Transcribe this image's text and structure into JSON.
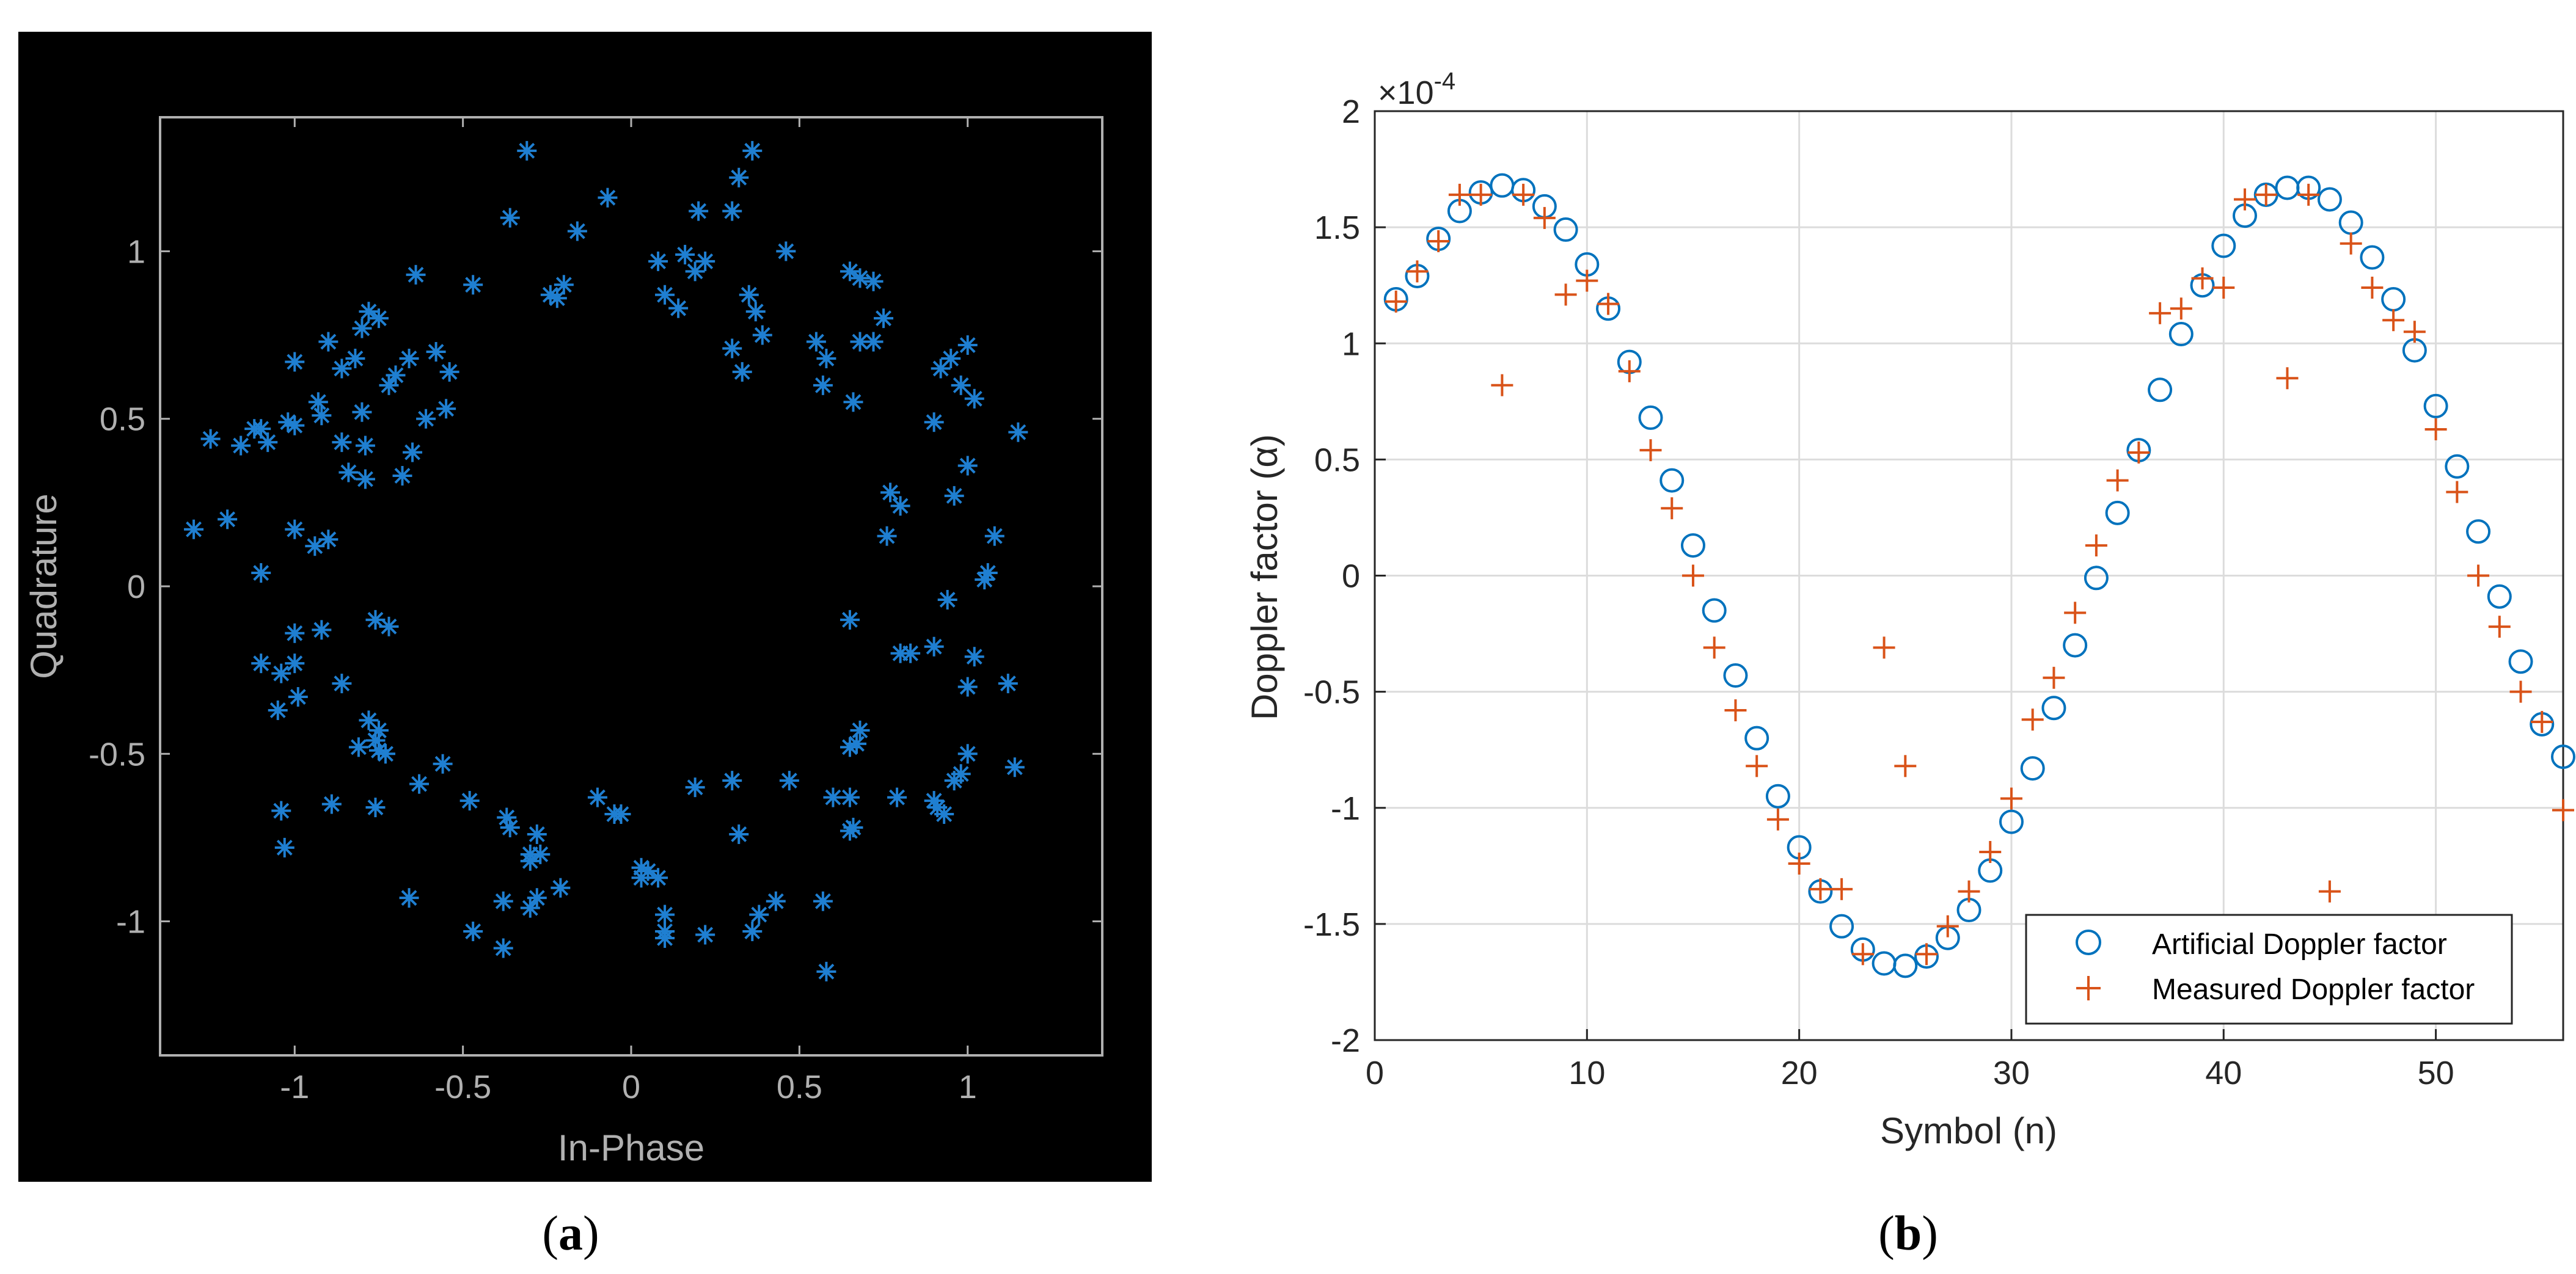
{
  "figure": {
    "caption_a": {
      "open": "(",
      "letter": "a",
      "close": ")"
    },
    "caption_b": {
      "open": "(",
      "letter": "b",
      "close": ")"
    }
  },
  "chart_data": [
    {
      "panel": "a",
      "type": "scatter",
      "title": "",
      "xlabel": "In-Phase",
      "ylabel": "Quadrature",
      "xlim": [
        -1.4,
        1.4
      ],
      "ylim": [
        -1.4,
        1.4
      ],
      "xticks": [
        -1,
        -0.5,
        0,
        0.5,
        1
      ],
      "xtick_labels": [
        "-1",
        "-0.5",
        "0",
        "0.5",
        "1"
      ],
      "yticks": [
        -1,
        -0.5,
        0,
        0.5,
        1
      ],
      "ytick_labels": [
        "-1",
        "-0.5",
        "0",
        "0.5",
        "1"
      ],
      "background": "#000000",
      "axis_color": "#b0b0b0",
      "marker": "asterisk",
      "marker_color": "#1f7fd1",
      "grid": false,
      "points": [
        [
          -0.31,
          1.3
        ],
        [
          -0.36,
          1.1
        ],
        [
          -0.16,
          1.06
        ],
        [
          -0.07,
          1.16
        ],
        [
          -0.2,
          0.9
        ],
        [
          -0.24,
          0.87
        ],
        [
          -0.22,
          0.86
        ],
        [
          0.36,
          1.3
        ],
        [
          0.32,
          1.22
        ],
        [
          0.3,
          1.12
        ],
        [
          0.2,
          1.12
        ],
        [
          0.16,
          0.99
        ],
        [
          0.22,
          0.97
        ],
        [
          0.19,
          0.94
        ],
        [
          0.08,
          0.97
        ],
        [
          0.1,
          0.87
        ],
        [
          0.14,
          0.83
        ],
        [
          0.46,
          1.0
        ],
        [
          0.35,
          0.87
        ],
        [
          0.37,
          0.82
        ],
        [
          0.39,
          0.75
        ],
        [
          0.3,
          0.71
        ],
        [
          0.33,
          0.64
        ],
        [
          0.65,
          0.94
        ],
        [
          0.68,
          0.92
        ],
        [
          0.72,
          0.91
        ],
        [
          0.55,
          0.73
        ],
        [
          0.58,
          0.68
        ],
        [
          0.68,
          0.73
        ],
        [
          0.72,
          0.73
        ],
        [
          0.75,
          0.8
        ],
        [
          0.57,
          0.6
        ],
        [
          0.66,
          0.55
        ],
        [
          -0.64,
          0.93
        ],
        [
          -0.47,
          0.9
        ],
        [
          -0.66,
          0.68
        ],
        [
          -0.72,
          0.6
        ],
        [
          -0.7,
          0.63
        ],
        [
          -0.75,
          0.8
        ],
        [
          -0.8,
          0.77
        ],
        [
          -0.86,
          0.65
        ],
        [
          -0.82,
          0.68
        ],
        [
          -0.58,
          0.7
        ],
        [
          -0.54,
          0.64
        ],
        [
          -0.61,
          0.5
        ],
        [
          -0.55,
          0.53
        ],
        [
          -1.0,
          0.67
        ],
        [
          -0.9,
          0.73
        ],
        [
          -0.78,
          0.82
        ],
        [
          -0.93,
          0.55
        ],
        [
          -0.92,
          0.51
        ],
        [
          -0.86,
          0.43
        ],
        [
          -0.79,
          0.42
        ],
        [
          -0.84,
          0.34
        ],
        [
          -0.79,
          0.32
        ],
        [
          -0.65,
          0.4
        ],
        [
          -0.68,
          0.33
        ],
        [
          -0.8,
          0.52
        ],
        [
          -1.25,
          0.44
        ],
        [
          -1.16,
          0.42
        ],
        [
          -1.1,
          0.47
        ],
        [
          -1.12,
          0.47
        ],
        [
          -1.08,
          0.43
        ],
        [
          -1.02,
          0.49
        ],
        [
          -1.0,
          0.48
        ],
        [
          -1.3,
          0.17
        ],
        [
          -1.2,
          0.2
        ],
        [
          -1.1,
          0.04
        ],
        [
          -1.0,
          0.17
        ],
        [
          -0.94,
          0.12
        ],
        [
          -0.9,
          0.14
        ],
        [
          0.92,
          0.65
        ],
        [
          0.95,
          0.68
        ],
        [
          1.0,
          0.72
        ],
        [
          0.98,
          0.6
        ],
        [
          1.02,
          0.56
        ],
        [
          0.9,
          0.49
        ],
        [
          1.0,
          0.36
        ],
        [
          0.96,
          0.27
        ],
        [
          1.15,
          0.46
        ],
        [
          0.77,
          0.28
        ],
        [
          0.8,
          0.24
        ],
        [
          0.76,
          0.15
        ],
        [
          1.08,
          0.15
        ],
        [
          1.06,
          0.04
        ],
        [
          1.05,
          0.02
        ],
        [
          0.94,
          -0.04
        ],
        [
          1.02,
          -0.21
        ],
        [
          1.12,
          -0.29
        ],
        [
          1.0,
          -0.3
        ],
        [
          0.9,
          -0.18
        ],
        [
          0.83,
          -0.2
        ],
        [
          0.8,
          -0.2
        ],
        [
          0.65,
          -0.1
        ],
        [
          -1.0,
          -0.14
        ],
        [
          -0.92,
          -0.13
        ],
        [
          -1.1,
          -0.23
        ],
        [
          -1.04,
          -0.26
        ],
        [
          -1.0,
          -0.23
        ],
        [
          -1.05,
          -0.37
        ],
        [
          -0.99,
          -0.33
        ],
        [
          -0.86,
          -0.29
        ],
        [
          -0.76,
          -0.1
        ],
        [
          -0.72,
          -0.12
        ],
        [
          -0.78,
          -0.4
        ],
        [
          -0.75,
          -0.43
        ],
        [
          -0.76,
          -0.46
        ],
        [
          -0.81,
          -0.48
        ],
        [
          -0.75,
          -0.49
        ],
        [
          -0.73,
          -0.5
        ],
        [
          -0.56,
          -0.53
        ],
        [
          -0.63,
          -0.59
        ],
        [
          -0.76,
          -0.66
        ],
        [
          -0.89,
          -0.65
        ],
        [
          -1.04,
          -0.67
        ],
        [
          -1.03,
          -0.78
        ],
        [
          -0.66,
          -0.93
        ],
        [
          0.68,
          -0.43
        ],
        [
          0.67,
          -0.47
        ],
        [
          0.65,
          -0.48
        ],
        [
          0.47,
          -0.58
        ],
        [
          0.6,
          -0.63
        ],
        [
          0.65,
          -0.63
        ],
        [
          0.66,
          -0.72
        ],
        [
          0.65,
          -0.73
        ],
        [
          0.79,
          -0.63
        ],
        [
          1.0,
          -0.5
        ],
        [
          0.98,
          -0.56
        ],
        [
          0.96,
          -0.58
        ],
        [
          0.9,
          -0.64
        ],
        [
          0.93,
          -0.68
        ],
        [
          0.91,
          -0.66
        ],
        [
          1.14,
          -0.54
        ],
        [
          -0.48,
          -0.64
        ],
        [
          -0.37,
          -0.69
        ],
        [
          -0.36,
          -0.72
        ],
        [
          -0.28,
          -0.74
        ],
        [
          -0.3,
          -0.8
        ],
        [
          -0.3,
          -0.82
        ],
        [
          -0.27,
          -0.8
        ],
        [
          -0.21,
          -0.9
        ],
        [
          -0.38,
          -0.94
        ],
        [
          -0.3,
          -0.96
        ],
        [
          -0.28,
          -0.93
        ],
        [
          -0.47,
          -1.03
        ],
        [
          -0.38,
          -1.08
        ],
        [
          -0.1,
          -0.63
        ],
        [
          -0.05,
          -0.68
        ],
        [
          -0.03,
          -0.68
        ],
        [
          0.03,
          -0.84
        ],
        [
          0.05,
          -0.85
        ],
        [
          0.03,
          -0.87
        ],
        [
          0.08,
          -0.87
        ],
        [
          0.1,
          -0.98
        ],
        [
          0.1,
          -1.03
        ],
        [
          0.1,
          -1.05
        ],
        [
          0.22,
          -1.04
        ],
        [
          0.3,
          -0.58
        ],
        [
          0.19,
          -0.6
        ],
        [
          0.32,
          -0.74
        ],
        [
          0.43,
          -0.94
        ],
        [
          0.38,
          -0.98
        ],
        [
          0.36,
          -1.03
        ],
        [
          0.57,
          -0.94
        ],
        [
          0.58,
          -1.15
        ]
      ]
    },
    {
      "panel": "b",
      "type": "scatter",
      "title": "",
      "xlabel": "Symbol (n)",
      "ylabel": "Doppler factor (α)",
      "exponent_label": "×10",
      "exponent_power": "-4",
      "xlim": [
        0,
        56
      ],
      "ylim": [
        -2,
        2
      ],
      "xticks": [
        0,
        10,
        20,
        30,
        40,
        50
      ],
      "xtick_labels": [
        "0",
        "10",
        "20",
        "30",
        "40",
        "50"
      ],
      "yticks": [
        -2,
        -1.5,
        -1,
        -0.5,
        0,
        0.5,
        1,
        1.5,
        2
      ],
      "ytick_labels": [
        "-2",
        "-1.5",
        "-1",
        "-0.5",
        "0",
        "0.5",
        "1",
        "1.5",
        "2"
      ],
      "grid": true,
      "legend_position": "bottom-right",
      "series": [
        {
          "name": "Artificial Doppler factor",
          "marker": "circle",
          "color": "#0072bd",
          "x": [
            1,
            2,
            3,
            4,
            5,
            6,
            7,
            8,
            9,
            10,
            11,
            12,
            13,
            14,
            15,
            16,
            17,
            18,
            19,
            20,
            21,
            22,
            23,
            24,
            25,
            26,
            27,
            28,
            29,
            30,
            31,
            32,
            33,
            34,
            35,
            36,
            37,
            38,
            39,
            40,
            41,
            42,
            43,
            44,
            45,
            46,
            47,
            48,
            49,
            50,
            51,
            52,
            53,
            54,
            55,
            56
          ],
          "values": [
            1.19,
            1.29,
            1.45,
            1.57,
            1.65,
            1.68,
            1.66,
            1.59,
            1.49,
            1.34,
            1.15,
            0.92,
            0.68,
            0.41,
            0.13,
            -0.15,
            -0.43,
            -0.7,
            -0.95,
            -1.17,
            -1.36,
            -1.51,
            -1.61,
            -1.67,
            -1.68,
            -1.64,
            -1.56,
            -1.44,
            -1.27,
            -1.06,
            -0.83,
            -0.57,
            -0.3,
            -0.01,
            0.27,
            0.54,
            0.8,
            1.04,
            1.25,
            1.42,
            1.55,
            1.64,
            1.67,
            1.67,
            1.62,
            1.52,
            1.37,
            1.19,
            0.97,
            0.73,
            0.47,
            0.19,
            -0.09,
            -0.37,
            -0.64,
            -0.78
          ]
        },
        {
          "name": "Measured Doppler factor",
          "marker": "plus",
          "color": "#d95319",
          "x": [
            1,
            2,
            3,
            4,
            5,
            6,
            7,
            8,
            9,
            10,
            11,
            12,
            13,
            14,
            15,
            16,
            17,
            18,
            19,
            20,
            21,
            22,
            23,
            24,
            25,
            26,
            27,
            28,
            29,
            30,
            31,
            32,
            33,
            34,
            35,
            36,
            37,
            38,
            39,
            40,
            41,
            42,
            43,
            44,
            45,
            46,
            47,
            48,
            49,
            50,
            51,
            52,
            53,
            54,
            55,
            56
          ],
          "values": [
            1.18,
            1.31,
            1.44,
            1.64,
            1.64,
            0.82,
            1.64,
            1.54,
            1.21,
            1.27,
            1.17,
            0.88,
            0.54,
            0.29,
            0.0,
            -0.31,
            -0.58,
            -0.82,
            -1.05,
            -1.24,
            -1.35,
            -1.35,
            -1.63,
            -0.31,
            -0.82,
            -1.63,
            -1.51,
            -1.36,
            -1.19,
            -0.96,
            -0.62,
            -0.44,
            -0.16,
            0.13,
            0.41,
            0.53,
            1.13,
            1.15,
            1.28,
            1.24,
            1.62,
            1.64,
            0.85,
            1.64,
            -1.36,
            1.43,
            1.24,
            1.1,
            1.05,
            0.63,
            0.36,
            0.0,
            -0.22,
            -0.5,
            -0.63,
            -1.01
          ]
        }
      ]
    }
  ]
}
